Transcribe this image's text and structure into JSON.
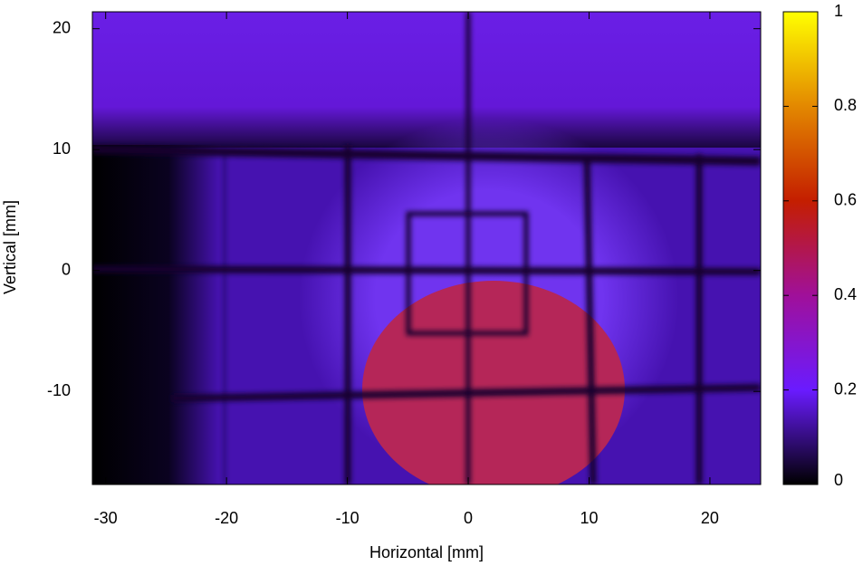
{
  "chart_data": {
    "type": "heatmap",
    "xlabel": "Horizontal [mm]",
    "ylabel": "Vertical [mm]",
    "xlim": [
      -31.1,
      24.2
    ],
    "ylim": [
      -17.7,
      21.4
    ],
    "xticks": [
      -30,
      -20,
      -10,
      0,
      10,
      20
    ],
    "yticks": [
      -10,
      0,
      10,
      20
    ],
    "zlim": [
      0,
      1
    ],
    "zticks": [
      0,
      0.2,
      0.4,
      0.6,
      0.8,
      1
    ],
    "colormap": [
      "#000000",
      "#6a1bff",
      "#a0109a",
      "#c41e00",
      "#e38800",
      "#ffff00"
    ]
  }
}
